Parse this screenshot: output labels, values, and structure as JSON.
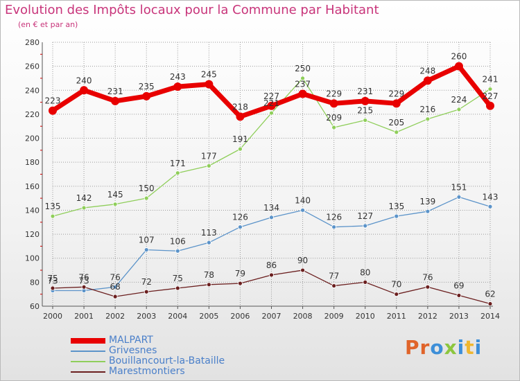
{
  "header": {
    "title": "Evolution des Impôts locaux pour la Commune par Habitant",
    "subtitle": "(en € et par an)"
  },
  "colors": {
    "title": "#c8347a",
    "MALPART": "#e80000",
    "Grivesnes": "#5b93c9",
    "Bouillancourt": "#8fce5a",
    "Marestmontiers": "#6b1f1f",
    "grid": "#9a9a9a"
  },
  "chart_data": {
    "type": "line",
    "x": [
      2000,
      2001,
      2002,
      2003,
      2004,
      2005,
      2006,
      2007,
      2008,
      2009,
      2010,
      2011,
      2012,
      2013,
      2014
    ],
    "ylim": [
      60,
      280
    ],
    "yticks": [
      60,
      80,
      100,
      120,
      140,
      160,
      180,
      200,
      220,
      240,
      260,
      280
    ],
    "grid": true,
    "title": "Evolution des Impôts locaux pour la Commune par Habitant",
    "ylabel": "(en € et par an)",
    "series": [
      {
        "name": "Grivesnes",
        "key": "Grivesnes",
        "values": [
          73,
          73,
          76,
          107,
          106,
          113,
          126,
          134,
          140,
          126,
          127,
          135,
          139,
          151,
          143
        ]
      },
      {
        "name": "Bouillancourt-la-Bataille",
        "key": "Bouillancourt",
        "values": [
          135,
          142,
          145,
          150,
          171,
          177,
          191,
          221,
          250,
          209,
          215,
          205,
          216,
          224,
          241
        ]
      },
      {
        "name": "Marestmontiers",
        "key": "Marestmontiers",
        "values": [
          75,
          76,
          68,
          72,
          75,
          78,
          79,
          86,
          90,
          77,
          80,
          70,
          76,
          69,
          62
        ]
      },
      {
        "name": "MALPART",
        "key": "MALPART",
        "values": [
          223,
          240,
          231,
          235,
          243,
          245,
          218,
          227,
          237,
          229,
          231,
          229,
          248,
          260,
          227
        ]
      }
    ]
  },
  "legend": {
    "items": [
      {
        "label": "MALPART",
        "key": "MALPART"
      },
      {
        "label": "Grivesnes",
        "key": "Grivesnes"
      },
      {
        "label": "Bouillancourt-la-Bataille",
        "key": "Bouillancourt"
      },
      {
        "label": "Marestmontiers",
        "key": "Marestmontiers"
      }
    ]
  },
  "brand": {
    "letters": [
      "P",
      "r",
      "o",
      "x",
      "i",
      "t",
      "i"
    ],
    "colors": [
      "#e0642a",
      "#e0642a",
      "#3d8fd8",
      "#8cc63e",
      "#3d8fd8",
      "#f0b72f",
      "#3d8fd8"
    ]
  }
}
